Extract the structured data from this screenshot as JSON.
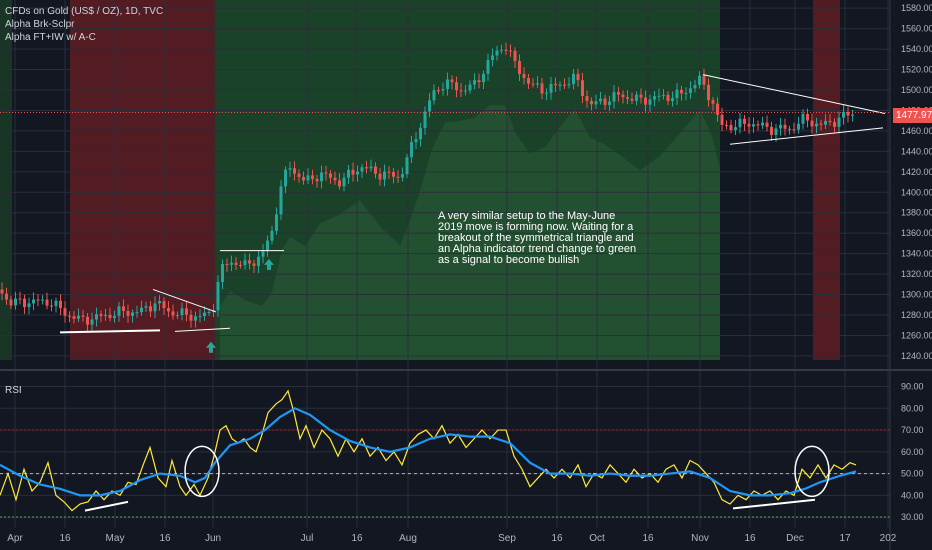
{
  "header": {
    "symbol_line": "CFDs on Gold (US$ / OZ), 1D, TVC",
    "indicator_1": "Alpha Brk-Sclpr",
    "indicator_2": "Alpha FT+IW w/ A-C"
  },
  "rsi_pane": {
    "label": "RSI"
  },
  "annotation": {
    "text": "A very similar setup to the May-June 2019 move is forming now. Waiting for a breakout of the symmetrical triangle and an Alpha indicator trend change to green as a signal to become bullish"
  },
  "current_price": "1477.97",
  "colors": {
    "background": "#131722",
    "bull_candle": "#26a69a",
    "bear_candle": "#ef5350",
    "bear_zone": "#5a1d22",
    "bull_zone": "#1c4a2a",
    "rsi_line": "#ffeb3b",
    "rsi_ma": "#2196f3",
    "up_arrow": "#26a69a"
  },
  "chart_data": [
    {
      "type": "candlestick",
      "title": "CFDs on Gold (US$ / OZ), 1D, TVC",
      "x_ticks": [
        "Apr",
        "16",
        "May",
        "16",
        "Jun",
        "Jul",
        "16",
        "Aug",
        "Sep",
        "16",
        "Oct",
        "16",
        "Nov",
        "16",
        "Dec",
        "17",
        "202"
      ],
      "y_ticks": [
        1240,
        1260,
        1280,
        1300,
        1320,
        1340,
        1360,
        1380,
        1400,
        1420,
        1440,
        1460,
        1480,
        1500,
        1520,
        1540,
        1560,
        1580
      ],
      "ylim": [
        1236,
        1588
      ],
      "grid": true,
      "last_price": 1477.97,
      "close_path": [
        {
          "x": 0,
          "close": 1305
        },
        {
          "x": 10,
          "close": 1292
        },
        {
          "x": 30,
          "close": 1293
        },
        {
          "x": 50,
          "close": 1293
        },
        {
          "x": 65,
          "close": 1282
        },
        {
          "x": 80,
          "close": 1275
        },
        {
          "x": 100,
          "close": 1278
        },
        {
          "x": 120,
          "close": 1283
        },
        {
          "x": 140,
          "close": 1283
        },
        {
          "x": 155,
          "close": 1292
        },
        {
          "x": 170,
          "close": 1283
        },
        {
          "x": 185,
          "close": 1280
        },
        {
          "x": 200,
          "close": 1278
        },
        {
          "x": 212,
          "close": 1283
        },
        {
          "x": 220,
          "close": 1322
        },
        {
          "x": 230,
          "close": 1333
        },
        {
          "x": 245,
          "close": 1328
        },
        {
          "x": 262,
          "close": 1338
        },
        {
          "x": 272,
          "close": 1362
        },
        {
          "x": 282,
          "close": 1410
        },
        {
          "x": 290,
          "close": 1425
        },
        {
          "x": 305,
          "close": 1410
        },
        {
          "x": 320,
          "close": 1418
        },
        {
          "x": 340,
          "close": 1410
        },
        {
          "x": 360,
          "close": 1425
        },
        {
          "x": 380,
          "close": 1418
        },
        {
          "x": 400,
          "close": 1415
        },
        {
          "x": 410,
          "close": 1440
        },
        {
          "x": 420,
          "close": 1465
        },
        {
          "x": 432,
          "close": 1495
        },
        {
          "x": 445,
          "close": 1508
        },
        {
          "x": 460,
          "close": 1500
        },
        {
          "x": 475,
          "close": 1505
        },
        {
          "x": 490,
          "close": 1530
        },
        {
          "x": 505,
          "close": 1545
        },
        {
          "x": 515,
          "close": 1525
        },
        {
          "x": 530,
          "close": 1505
        },
        {
          "x": 545,
          "close": 1500
        },
        {
          "x": 560,
          "close": 1505
        },
        {
          "x": 575,
          "close": 1512
        },
        {
          "x": 590,
          "close": 1485
        },
        {
          "x": 605,
          "close": 1490
        },
        {
          "x": 620,
          "close": 1495
        },
        {
          "x": 640,
          "close": 1490
        },
        {
          "x": 660,
          "close": 1493
        },
        {
          "x": 680,
          "close": 1495
        },
        {
          "x": 700,
          "close": 1510
        },
        {
          "x": 712,
          "close": 1490
        },
        {
          "x": 720,
          "close": 1465
        },
        {
          "x": 735,
          "close": 1465
        },
        {
          "x": 750,
          "close": 1468
        },
        {
          "x": 770,
          "close": 1462
        },
        {
          "x": 790,
          "close": 1462
        },
        {
          "x": 805,
          "close": 1472
        },
        {
          "x": 820,
          "close": 1465
        },
        {
          "x": 835,
          "close": 1470
        },
        {
          "x": 850,
          "close": 1477
        }
      ],
      "zones": [
        {
          "trend": "bearish",
          "from": 70,
          "to": 215
        },
        {
          "trend": "bullish",
          "from": 215,
          "to": 720
        },
        {
          "trend": "bearish",
          "from": 813,
          "to": 840
        }
      ],
      "signals": [
        {
          "type": "up-arrow",
          "x": 211,
          "price": 1248
        },
        {
          "type": "up-arrow",
          "x": 269,
          "price": 1329
        }
      ],
      "trendlines": [
        {
          "x1": 60,
          "y1": 1263,
          "x2": 160,
          "y2": 1265
        },
        {
          "x1": 153,
          "y1": 1305,
          "x2": 216,
          "y2": 1283
        },
        {
          "x1": 175,
          "y1": 1264,
          "x2": 230,
          "y2": 1267
        },
        {
          "x1": 220,
          "y1": 1343,
          "x2": 284,
          "y2": 1343
        },
        {
          "x1": 703,
          "y1": 1515,
          "x2": 885,
          "y2": 1477
        },
        {
          "x1": 730,
          "y1": 1447,
          "x2": 883,
          "y2": 1463
        }
      ]
    },
    {
      "type": "line",
      "title": "RSI",
      "y_ticks": [
        30,
        40,
        50,
        60,
        70,
        80,
        90
      ],
      "ylim": [
        25,
        93
      ],
      "levels": {
        "upper": 70,
        "middle": 50,
        "lower": 30
      },
      "series": [
        {
          "role": "rsi",
          "points": [
            {
              "x": 0,
              "v": 40
            },
            {
              "x": 8,
              "v": 50
            },
            {
              "x": 16,
              "v": 38
            },
            {
              "x": 24,
              "v": 52
            },
            {
              "x": 32,
              "v": 42
            },
            {
              "x": 40,
              "v": 46
            },
            {
              "x": 48,
              "v": 55
            },
            {
              "x": 56,
              "v": 40
            },
            {
              "x": 64,
              "v": 37
            },
            {
              "x": 72,
              "v": 33
            },
            {
              "x": 80,
              "v": 36
            },
            {
              "x": 88,
              "v": 37
            },
            {
              "x": 96,
              "v": 42
            },
            {
              "x": 104,
              "v": 38
            },
            {
              "x": 112,
              "v": 42
            },
            {
              "x": 120,
              "v": 40
            },
            {
              "x": 128,
              "v": 46
            },
            {
              "x": 136,
              "v": 45
            },
            {
              "x": 144,
              "v": 55
            },
            {
              "x": 150,
              "v": 62
            },
            {
              "x": 158,
              "v": 48
            },
            {
              "x": 166,
              "v": 44
            },
            {
              "x": 172,
              "v": 56
            },
            {
              "x": 180,
              "v": 44
            },
            {
              "x": 186,
              "v": 40
            },
            {
              "x": 194,
              "v": 45
            },
            {
              "x": 200,
              "v": 40
            },
            {
              "x": 208,
              "v": 48
            },
            {
              "x": 214,
              "v": 58
            },
            {
              "x": 220,
              "v": 70
            },
            {
              "x": 226,
              "v": 72
            },
            {
              "x": 232,
              "v": 66
            },
            {
              "x": 238,
              "v": 64
            },
            {
              "x": 244,
              "v": 66
            },
            {
              "x": 250,
              "v": 62
            },
            {
              "x": 256,
              "v": 60
            },
            {
              "x": 262,
              "v": 68
            },
            {
              "x": 268,
              "v": 78
            },
            {
              "x": 276,
              "v": 82
            },
            {
              "x": 282,
              "v": 84
            },
            {
              "x": 288,
              "v": 88
            },
            {
              "x": 294,
              "v": 78
            },
            {
              "x": 300,
              "v": 66
            },
            {
              "x": 306,
              "v": 72
            },
            {
              "x": 314,
              "v": 62
            },
            {
              "x": 322,
              "v": 70
            },
            {
              "x": 330,
              "v": 66
            },
            {
              "x": 338,
              "v": 58
            },
            {
              "x": 346,
              "v": 66
            },
            {
              "x": 354,
              "v": 60
            },
            {
              "x": 362,
              "v": 66
            },
            {
              "x": 370,
              "v": 58
            },
            {
              "x": 378,
              "v": 62
            },
            {
              "x": 386,
              "v": 56
            },
            {
              "x": 394,
              "v": 60
            },
            {
              "x": 402,
              "v": 54
            },
            {
              "x": 410,
              "v": 64
            },
            {
              "x": 418,
              "v": 68
            },
            {
              "x": 426,
              "v": 70
            },
            {
              "x": 434,
              "v": 66
            },
            {
              "x": 442,
              "v": 72
            },
            {
              "x": 450,
              "v": 64
            },
            {
              "x": 458,
              "v": 68
            },
            {
              "x": 466,
              "v": 62
            },
            {
              "x": 474,
              "v": 66
            },
            {
              "x": 482,
              "v": 70
            },
            {
              "x": 490,
              "v": 66
            },
            {
              "x": 498,
              "v": 70
            },
            {
              "x": 506,
              "v": 70
            },
            {
              "x": 514,
              "v": 58
            },
            {
              "x": 522,
              "v": 52
            },
            {
              "x": 530,
              "v": 44
            },
            {
              "x": 538,
              "v": 48
            },
            {
              "x": 546,
              "v": 52
            },
            {
              "x": 554,
              "v": 48
            },
            {
              "x": 562,
              "v": 52
            },
            {
              "x": 570,
              "v": 48
            },
            {
              "x": 578,
              "v": 54
            },
            {
              "x": 586,
              "v": 44
            },
            {
              "x": 594,
              "v": 50
            },
            {
              "x": 602,
              "v": 48
            },
            {
              "x": 610,
              "v": 54
            },
            {
              "x": 618,
              "v": 50
            },
            {
              "x": 626,
              "v": 46
            },
            {
              "x": 634,
              "v": 52
            },
            {
              "x": 642,
              "v": 48
            },
            {
              "x": 650,
              "v": 50
            },
            {
              "x": 658,
              "v": 46
            },
            {
              "x": 666,
              "v": 52
            },
            {
              "x": 674,
              "v": 54
            },
            {
              "x": 682,
              "v": 48
            },
            {
              "x": 690,
              "v": 56
            },
            {
              "x": 698,
              "v": 54
            },
            {
              "x": 706,
              "v": 50
            },
            {
              "x": 714,
              "v": 46
            },
            {
              "x": 722,
              "v": 38
            },
            {
              "x": 730,
              "v": 36
            },
            {
              "x": 738,
              "v": 40
            },
            {
              "x": 746,
              "v": 38
            },
            {
              "x": 754,
              "v": 42
            },
            {
              "x": 762,
              "v": 40
            },
            {
              "x": 770,
              "v": 42
            },
            {
              "x": 778,
              "v": 38
            },
            {
              "x": 786,
              "v": 42
            },
            {
              "x": 794,
              "v": 40
            },
            {
              "x": 802,
              "v": 52
            },
            {
              "x": 810,
              "v": 48
            },
            {
              "x": 818,
              "v": 54
            },
            {
              "x": 826,
              "v": 48
            },
            {
              "x": 834,
              "v": 54
            },
            {
              "x": 842,
              "v": 52
            },
            {
              "x": 850,
              "v": 55
            },
            {
              "x": 856,
              "v": 54
            }
          ]
        },
        {
          "role": "rsi-ma",
          "points": [
            {
              "x": 0,
              "v": 54
            },
            {
              "x": 20,
              "v": 49
            },
            {
              "x": 40,
              "v": 45
            },
            {
              "x": 60,
              "v": 43
            },
            {
              "x": 80,
              "v": 40
            },
            {
              "x": 100,
              "v": 40
            },
            {
              "x": 120,
              "v": 42
            },
            {
              "x": 140,
              "v": 47
            },
            {
              "x": 160,
              "v": 50
            },
            {
              "x": 180,
              "v": 49
            },
            {
              "x": 195,
              "v": 46
            },
            {
              "x": 205,
              "v": 48
            },
            {
              "x": 215,
              "v": 55
            },
            {
              "x": 230,
              "v": 63
            },
            {
              "x": 250,
              "v": 66
            },
            {
              "x": 265,
              "v": 70
            },
            {
              "x": 280,
              "v": 76
            },
            {
              "x": 295,
              "v": 80
            },
            {
              "x": 310,
              "v": 77
            },
            {
              "x": 330,
              "v": 70
            },
            {
              "x": 350,
              "v": 65
            },
            {
              "x": 370,
              "v": 62
            },
            {
              "x": 390,
              "v": 60
            },
            {
              "x": 410,
              "v": 62
            },
            {
              "x": 430,
              "v": 66
            },
            {
              "x": 450,
              "v": 68
            },
            {
              "x": 470,
              "v": 67
            },
            {
              "x": 490,
              "v": 67
            },
            {
              "x": 510,
              "v": 64
            },
            {
              "x": 530,
              "v": 55
            },
            {
              "x": 550,
              "v": 50
            },
            {
              "x": 570,
              "v": 50
            },
            {
              "x": 590,
              "v": 49
            },
            {
              "x": 610,
              "v": 50
            },
            {
              "x": 630,
              "v": 49
            },
            {
              "x": 650,
              "v": 49
            },
            {
              "x": 670,
              "v": 50
            },
            {
              "x": 690,
              "v": 51
            },
            {
              "x": 710,
              "v": 48
            },
            {
              "x": 730,
              "v": 42
            },
            {
              "x": 750,
              "v": 40
            },
            {
              "x": 770,
              "v": 40
            },
            {
              "x": 790,
              "v": 41
            },
            {
              "x": 805,
              "v": 43
            },
            {
              "x": 820,
              "v": 46
            },
            {
              "x": 840,
              "v": 49
            },
            {
              "x": 856,
              "v": 51
            }
          ]
        }
      ],
      "trendlines": [
        {
          "x1": 85,
          "y1": 33,
          "x2": 128,
          "y2": 37
        },
        {
          "x1": 733,
          "y1": 34,
          "x2": 815,
          "y2": 38
        }
      ],
      "circles": [
        {
          "cx": 202,
          "v": 51
        },
        {
          "cx": 812,
          "v": 51
        }
      ]
    }
  ]
}
